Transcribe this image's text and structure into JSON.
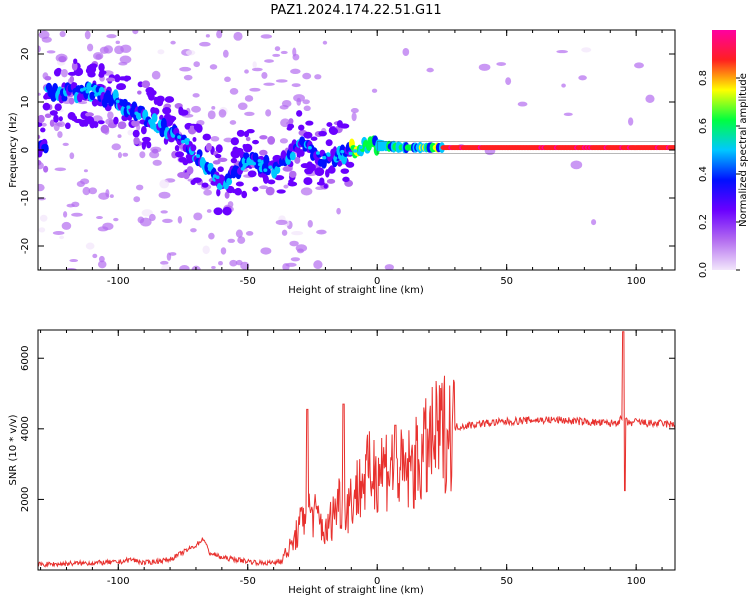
{
  "title": "PAZ1.2024.174.22.51.G11",
  "colors": {
    "snr_line": "#e8312e",
    "axis": "#000000",
    "colormap": [
      "#f2e6fb",
      "#b36cf0",
      "#6a00ff",
      "#0010ff",
      "#00c8ff",
      "#00ff40",
      "#ffff00",
      "#ff2020",
      "#ff00a0"
    ]
  },
  "chart_data": [
    {
      "type": "heatmap",
      "xlabel": "Height of straight line (km)",
      "ylabel": "Frequency (Hz)",
      "xlim": [
        -131,
        115
      ],
      "ylim": [
        -25,
        25
      ],
      "xticks": [
        -100,
        -50,
        0,
        50,
        100
      ],
      "yticks": [
        -20,
        -10,
        0,
        10,
        20
      ],
      "grid": false,
      "colorbar": {
        "label": "Normalized spectral amplitude",
        "ticks": [
          "0.0",
          "0.2",
          "0.4",
          "0.6",
          "0.8"
        ],
        "tick_values": [
          0.0,
          0.2,
          0.4,
          0.6,
          0.8
        ],
        "range": [
          0,
          1
        ]
      },
      "ridge": [
        {
          "x": -128,
          "y": 12
        },
        {
          "x": -110,
          "y": 12
        },
        {
          "x": -100,
          "y": 10
        },
        {
          "x": -90,
          "y": 7
        },
        {
          "x": -80,
          "y": 4
        },
        {
          "x": -70,
          "y": -1
        },
        {
          "x": -60,
          "y": -7
        },
        {
          "x": -50,
          "y": -2
        },
        {
          "x": -40,
          "y": -4
        },
        {
          "x": -30,
          "y": 1
        },
        {
          "x": -20,
          "y": -2
        },
        {
          "x": -10,
          "y": 0
        },
        {
          "x": 0,
          "y": 1
        },
        {
          "x": 10,
          "y": 0.5
        },
        {
          "x": 20,
          "y": 0.5
        },
        {
          "x": 30,
          "y": 0.5
        },
        {
          "x": 115,
          "y": 0.5
        }
      ]
    },
    {
      "type": "line",
      "xlabel": "Height of straight line (km)",
      "ylabel": "SNR (10 * v/v)",
      "xlim": [
        -131,
        115
      ],
      "ylim": [
        0,
        6800
      ],
      "xticks": [
        -100,
        -50,
        0,
        50,
        100
      ],
      "yticks": [
        2000,
        4000,
        6000
      ],
      "grid": false,
      "series": [
        {
          "x": [
            -131,
            -120,
            -110,
            -100,
            -95,
            -90,
            -85,
            -80,
            -75,
            -70,
            -67,
            -65,
            -60,
            -55,
            -50,
            -45,
            -40,
            -37,
            -33,
            -30,
            -27,
            -25,
            -22,
            -20,
            -17,
            -15,
            -12,
            -10,
            -5,
            0,
            5,
            8,
            10,
            15,
            20,
            25,
            30,
            40,
            50,
            60,
            70,
            80,
            90,
            93,
            95,
            97,
            100,
            105,
            110,
            115
          ],
          "y": [
            150,
            180,
            200,
            220,
            300,
            200,
            250,
            300,
            500,
            700,
            900,
            500,
            350,
            300,
            250,
            200,
            200,
            300,
            700,
            1200,
            1800,
            1600,
            1400,
            1000,
            1600,
            2000,
            1800,
            2000,
            2600,
            2900,
            3000,
            2900,
            2700,
            3000,
            3500,
            3900,
            4050,
            4150,
            4200,
            4250,
            4250,
            4200,
            4150,
            4200,
            4300,
            4150,
            4200,
            4150,
            4150,
            4100
          ]
        }
      ]
    }
  ]
}
